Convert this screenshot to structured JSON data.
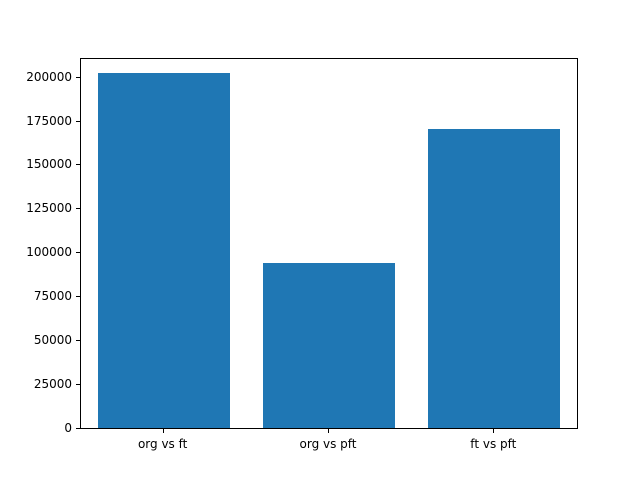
{
  "chart_data": {
    "type": "bar",
    "categories": [
      "org vs ft",
      "org vs pft",
      "ft vs pft"
    ],
    "values": [
      202000,
      94000,
      170000
    ],
    "title": "",
    "xlabel": "",
    "ylabel": "",
    "ylim": [
      0,
      210000
    ],
    "yticks": [
      0,
      25000,
      50000,
      75000,
      100000,
      125000,
      150000,
      175000,
      200000
    ],
    "ytick_labels": [
      "0",
      "25000",
      "50000",
      "75000",
      "100000",
      "125000",
      "150000",
      "175000",
      "200000"
    ],
    "bar_color": "#1f77b4",
    "axes_edge_color": "#000000",
    "background_color": "#ffffff",
    "grid": false,
    "legend": "none",
    "bar_relative_width": 0.8
  }
}
